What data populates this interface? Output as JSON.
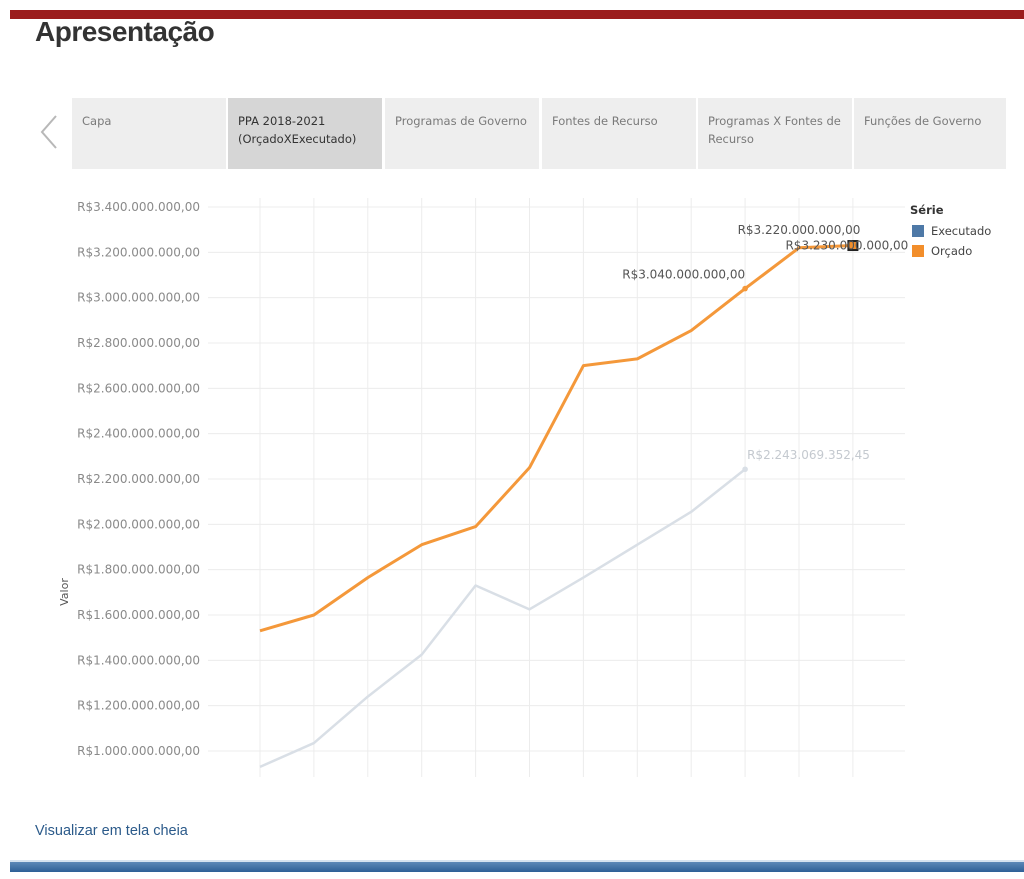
{
  "header": {
    "title": "Apresentação"
  },
  "tabs": [
    {
      "label": "Capa",
      "active": false
    },
    {
      "label": "PPA 2018-2021 (OrçadoXExecutado)",
      "active": true
    },
    {
      "label": "Programas de Governo",
      "active": false
    },
    {
      "label": "Fontes de Recurso",
      "active": false
    },
    {
      "label": "Programas X Fontes de Recurso",
      "active": false
    },
    {
      "label": "Funções de Governo",
      "active": false
    }
  ],
  "footer": {
    "fullscreen_link": "Visualizar em tela cheia"
  },
  "chart_data": {
    "type": "line",
    "ylabel": "Valor",
    "xlabel": "",
    "ylim": [
      900000000,
      3400000000
    ],
    "y_ticks": [
      "R$1.000.000.000,00",
      "R$1.200.000.000,00",
      "R$1.400.000.000,00",
      "R$1.600.000.000,00",
      "R$1.800.000.000,00",
      "R$2.000.000.000,00",
      "R$2.200.000.000,00",
      "R$2.400.000.000,00",
      "R$2.600.000.000,00",
      "R$2.800.000.000,00",
      "R$3.000.000.000,00",
      "R$3.200.000.000,00",
      "R$3.400.000.000,00"
    ],
    "x": [
      1,
      2,
      3,
      4,
      5,
      6,
      7,
      8,
      9,
      10,
      11,
      12
    ],
    "legend": {
      "title": "Série",
      "position": "top-right"
    },
    "series": [
      {
        "name": "Executado",
        "color": "#4e79a7",
        "line_color": "#d9dfe6",
        "values": [
          930000000,
          1035000000,
          1240000000,
          1425000000,
          1730000000,
          1625000000,
          1765000000,
          1910000000,
          2055000000,
          2243069352.45,
          null,
          null
        ]
      },
      {
        "name": "Orçado",
        "color": "#f28e2b",
        "line_color": "#f4983a",
        "values": [
          1530000000,
          1600000000,
          1765000000,
          1910000000,
          1990000000,
          2250000000,
          2700000000,
          2730000000,
          2855000000,
          3040000000,
          3220000000,
          3230000000
        ]
      }
    ],
    "annotations": [
      {
        "text": "R$2.243.069.352,45",
        "series": "Executado",
        "index": 9
      },
      {
        "text": "R$3.040.000.000,00",
        "series": "Orçado",
        "index": 9
      },
      {
        "text": "R$3.220.000.000,00",
        "series": "Orçado",
        "index": 10
      },
      {
        "text": "R$3.230.000.000,00",
        "series": "Orçado",
        "index": 11
      }
    ]
  }
}
